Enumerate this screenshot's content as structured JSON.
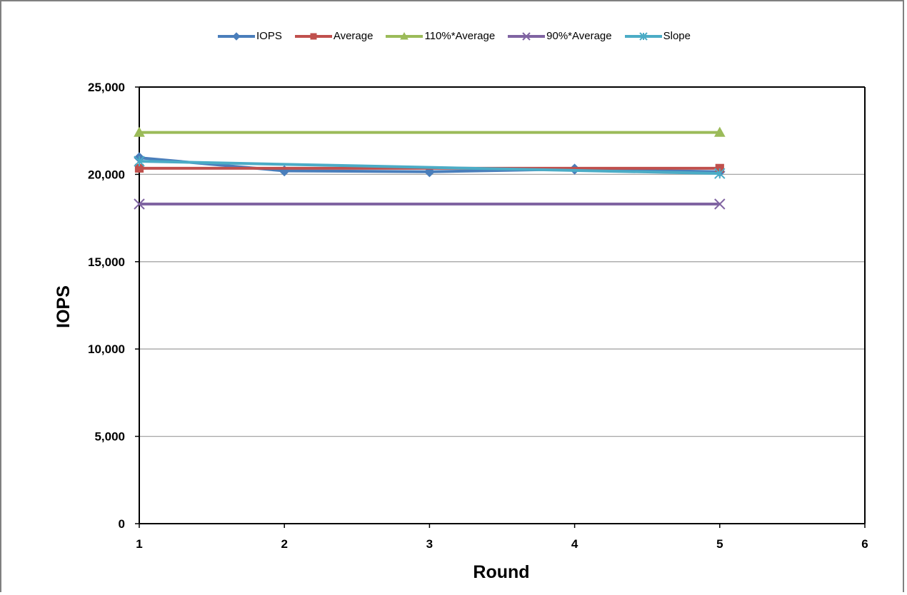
{
  "chart_data": {
    "type": "line",
    "title": "",
    "xlabel": "Round",
    "ylabel": "IOPS",
    "xlim": [
      1,
      6
    ],
    "ylim": [
      0,
      25000
    ],
    "x_ticks": [
      1,
      2,
      3,
      4,
      5,
      6
    ],
    "y_ticks": [
      0,
      5000,
      10000,
      15000,
      20000,
      25000
    ],
    "y_tick_labels": [
      "0",
      "5,000",
      "10,000",
      "15,000",
      "20,000",
      "25,000"
    ],
    "x_tick_labels": [
      "1",
      "2",
      "3",
      "4",
      "5",
      "6"
    ],
    "grid": "horizontal",
    "legend_position": "top",
    "series": [
      {
        "name": "IOPS",
        "color": "#4a7ebb",
        "marker": "diamond",
        "x": [
          1,
          2,
          3,
          4,
          5
        ],
        "y": [
          20950,
          20200,
          20150,
          20300,
          20150
        ]
      },
      {
        "name": "Average",
        "color": "#c0504d",
        "marker": "square",
        "x": [
          1,
          5
        ],
        "y": [
          20350,
          20350
        ]
      },
      {
        "name": "110%*Average",
        "color": "#9bbb59",
        "marker": "triangle",
        "x": [
          1,
          5
        ],
        "y": [
          22400,
          22400
        ]
      },
      {
        "name": "90%*Average",
        "color": "#8064a2",
        "marker": "x",
        "x": [
          1,
          5
        ],
        "y": [
          18300,
          18300
        ]
      },
      {
        "name": "Slope",
        "color": "#4bacc6",
        "marker": "star",
        "x": [
          1,
          5
        ],
        "y": [
          20750,
          20050
        ]
      }
    ]
  }
}
